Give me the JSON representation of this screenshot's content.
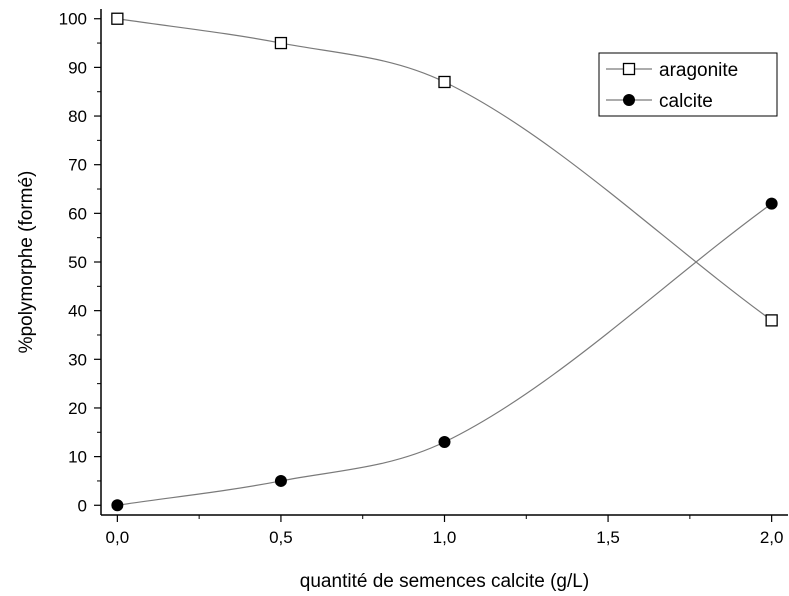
{
  "chart_data": {
    "type": "line",
    "xlabel": "quantité de semences calcite (g/L)",
    "ylabel": "%polymorphe (formé)",
    "xlim": [
      -0.05,
      2.05
    ],
    "ylim": [
      -2,
      102
    ],
    "x_ticks": [
      0.0,
      0.5,
      1.0,
      1.5,
      2.0
    ],
    "x_tick_labels": [
      "0,0",
      "0,5",
      "1,0",
      "1,5",
      "2,0"
    ],
    "y_ticks": [
      0,
      10,
      20,
      30,
      40,
      50,
      60,
      70,
      80,
      90,
      100
    ],
    "y_tick_labels": [
      "0",
      "10",
      "20",
      "30",
      "40",
      "50",
      "60",
      "70",
      "80",
      "90",
      "100"
    ],
    "grid": false,
    "legend_position": "top-right",
    "series": [
      {
        "name": "aragonite",
        "marker": "open-square",
        "x": [
          0.0,
          0.5,
          1.0,
          2.0
        ],
        "y": [
          100,
          95,
          87,
          38
        ]
      },
      {
        "name": "calcite",
        "marker": "filled-circle",
        "x": [
          0.0,
          0.5,
          1.0,
          2.0
        ],
        "y": [
          0,
          5,
          13,
          62
        ]
      }
    ]
  },
  "colors": {
    "line": "#7a7a7a",
    "marker": "#000000",
    "axis": "#000000"
  }
}
